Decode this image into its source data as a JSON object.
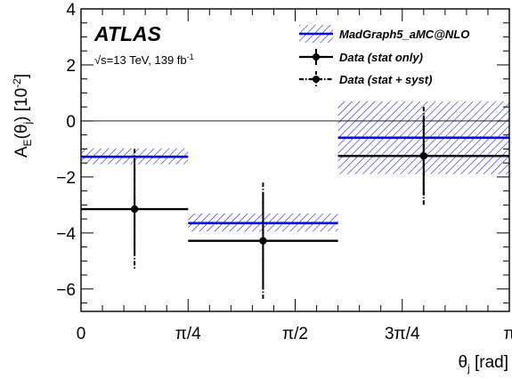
{
  "chart_data": {
    "type": "line",
    "experiment": "ATLAS",
    "energy_text": "√s=13 TeV, 139 fb",
    "lumi_exponent": "-1",
    "ylabel": {
      "main": "A",
      "sub_E": "E",
      "mid": "(θ",
      "sub_j": "j",
      "close": ") [10",
      "sup": "-2",
      "end": "]"
    },
    "xlabel": {
      "main": "θ",
      "sub": "j",
      "unit": " [rad]"
    },
    "xlim": [
      0,
      1
    ],
    "ylim": [
      -6.8,
      4.0
    ],
    "yticks": [
      -6,
      -4,
      -2,
      0,
      2,
      4
    ],
    "ytick_labels": [
      "−6",
      "−4",
      "−2",
      "0",
      "2",
      "4"
    ],
    "xticks": [
      0,
      0.25,
      0.5,
      0.75,
      1.0
    ],
    "xtick_labels": [
      "0",
      "π/4",
      "π/2",
      "3π/4",
      "π"
    ],
    "bins": [
      [
        0,
        0.25
      ],
      [
        0.25,
        0.6
      ],
      [
        0.6,
        1.0
      ]
    ],
    "mc": {
      "name": "MadGraph5_aMC@NLO",
      "values": [
        -1.28,
        -3.65,
        -0.6
      ],
      "band_low": [
        -1.55,
        -3.95,
        -1.9
      ],
      "band_high": [
        -0.98,
        -3.3,
        0.7
      ],
      "color": "#0000ee"
    },
    "data_stat": {
      "name": "Data (stat only)",
      "x": [
        0.125,
        0.425,
        0.8
      ],
      "values": [
        -3.15,
        -4.28,
        -1.25
      ],
      "err_low": [
        -4.8,
        -6.0,
        -2.65
      ],
      "err_high": [
        -1.5,
        -2.6,
        0.2
      ]
    },
    "data_syst": {
      "name": "Data (stat + syst)",
      "err_low": [
        -5.3,
        -6.35,
        -3.05
      ],
      "err_high": [
        -1.0,
        -2.2,
        0.5
      ]
    },
    "colors": {
      "band_hatch": "#1c1cd6",
      "axis": "#000000"
    },
    "legend_position": "top-right"
  }
}
